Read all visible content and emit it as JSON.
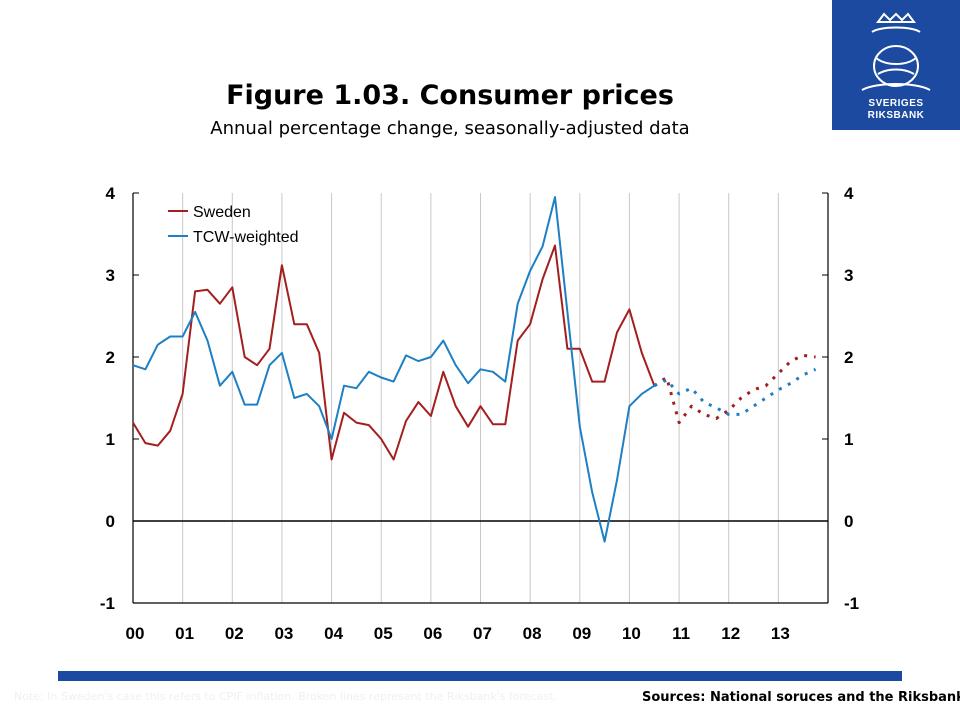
{
  "logo": {
    "line1": "SVERIGES",
    "line2": "RIKSBANK"
  },
  "title": "Figure 1.03. Consumer prices",
  "subtitle": "Annual percentage change, seasonally-adjusted data",
  "footer": {
    "note": "Note: In Sweden's case this refers to CPIF inflation. Broken lines represent the Riksbank's forecast.",
    "sources": "Sources: National soruces and the Riksbank"
  },
  "colors": {
    "sweden": "#a31f1f",
    "tcw": "#1f7fc4",
    "brand": "#1b4aa0"
  },
  "chart_data": {
    "type": "line",
    "title": "Figure 1.03. Consumer prices",
    "subtitle": "Annual percentage change, seasonally-adjusted data",
    "x_tick_labels": [
      "00",
      "01",
      "02",
      "03",
      "04",
      "05",
      "06",
      "07",
      "08",
      "09",
      "10",
      "11",
      "12",
      "13"
    ],
    "y_tick_labels": [
      "-1",
      "0",
      "1",
      "2",
      "3",
      "4"
    ],
    "ylim": [
      -1,
      4
    ],
    "xlim": [
      2000.0,
      2014.0
    ],
    "grid": "vertical",
    "legend_position": "top-left",
    "series": [
      {
        "name": "Sweden",
        "color": "#a31f1f",
        "style": "solid",
        "x": [
          2000.0,
          2000.25,
          2000.5,
          2000.75,
          2001.0,
          2001.25,
          2001.5,
          2001.75,
          2002.0,
          2002.25,
          2002.5,
          2002.75,
          2003.0,
          2003.25,
          2003.5,
          2003.75,
          2004.0,
          2004.25,
          2004.5,
          2004.75,
          2005.0,
          2005.25,
          2005.5,
          2005.75,
          2006.0,
          2006.25,
          2006.5,
          2006.75,
          2007.0,
          2007.25,
          2007.5,
          2007.75,
          2008.0,
          2008.25,
          2008.5,
          2008.75,
          2009.0,
          2009.25,
          2009.5,
          2009.75,
          2010.0,
          2010.25,
          2010.5
        ],
        "y": [
          1.2,
          0.95,
          0.92,
          1.1,
          1.55,
          2.8,
          2.82,
          2.65,
          2.85,
          2.0,
          1.9,
          2.1,
          3.12,
          2.4,
          2.4,
          2.05,
          0.75,
          1.32,
          1.2,
          1.17,
          1.0,
          0.75,
          1.22,
          1.45,
          1.28,
          1.82,
          1.4,
          1.15,
          1.4,
          1.18,
          1.18,
          2.2,
          2.4,
          2.95,
          3.36,
          2.1,
          2.1,
          1.7,
          1.7,
          2.3,
          2.58,
          2.05,
          1.65
        ]
      },
      {
        "name": "Sweden forecast",
        "color": "#a31f1f",
        "style": "dashed",
        "x": [
          2010.5,
          2010.75,
          2011.0,
          2011.25,
          2011.5,
          2011.75,
          2012.0,
          2012.25,
          2012.5,
          2012.75,
          2013.0,
          2013.25,
          2013.5,
          2013.75
        ],
        "y": [
          1.65,
          1.75,
          1.2,
          1.4,
          1.3,
          1.25,
          1.35,
          1.5,
          1.6,
          1.65,
          1.8,
          1.95,
          2.02,
          2.0
        ]
      },
      {
        "name": "TCW-weighted",
        "color": "#1f7fc4",
        "style": "solid",
        "x": [
          2000.0,
          2000.25,
          2000.5,
          2000.75,
          2001.0,
          2001.25,
          2001.5,
          2001.75,
          2002.0,
          2002.25,
          2002.5,
          2002.75,
          2003.0,
          2003.25,
          2003.5,
          2003.75,
          2004.0,
          2004.25,
          2004.5,
          2004.75,
          2005.0,
          2005.25,
          2005.5,
          2005.75,
          2006.0,
          2006.25,
          2006.5,
          2006.75,
          2007.0,
          2007.25,
          2007.5,
          2007.75,
          2008.0,
          2008.25,
          2008.5,
          2008.75,
          2009.0,
          2009.25,
          2009.5,
          2009.75,
          2010.0,
          2010.25,
          2010.5
        ],
        "y": [
          1.9,
          1.85,
          2.15,
          2.25,
          2.25,
          2.55,
          2.2,
          1.65,
          1.82,
          1.42,
          1.42,
          1.9,
          2.05,
          1.5,
          1.55,
          1.4,
          1.0,
          1.65,
          1.62,
          1.82,
          1.75,
          1.7,
          2.02,
          1.95,
          2.0,
          2.2,
          1.9,
          1.68,
          1.85,
          1.82,
          1.7,
          2.65,
          3.05,
          3.35,
          3.95,
          2.55,
          1.15,
          0.35,
          -0.25,
          0.5,
          1.4,
          1.55,
          1.65
        ]
      },
      {
        "name": "TCW-weighted forecast",
        "color": "#1f7fc4",
        "style": "dashed",
        "x": [
          2010.5,
          2010.75,
          2011.0,
          2011.25,
          2011.5,
          2011.75,
          2012.0,
          2012.25,
          2012.5,
          2012.75,
          2013.0,
          2013.25,
          2013.5,
          2013.75
        ],
        "y": [
          1.65,
          1.72,
          1.55,
          1.62,
          1.45,
          1.38,
          1.3,
          1.3,
          1.4,
          1.5,
          1.6,
          1.68,
          1.78,
          1.85
        ]
      }
    ],
    "legend": [
      {
        "label": "Sweden",
        "color": "#a31f1f"
      },
      {
        "label": "TCW-weighted",
        "color": "#1f7fc4"
      }
    ]
  }
}
